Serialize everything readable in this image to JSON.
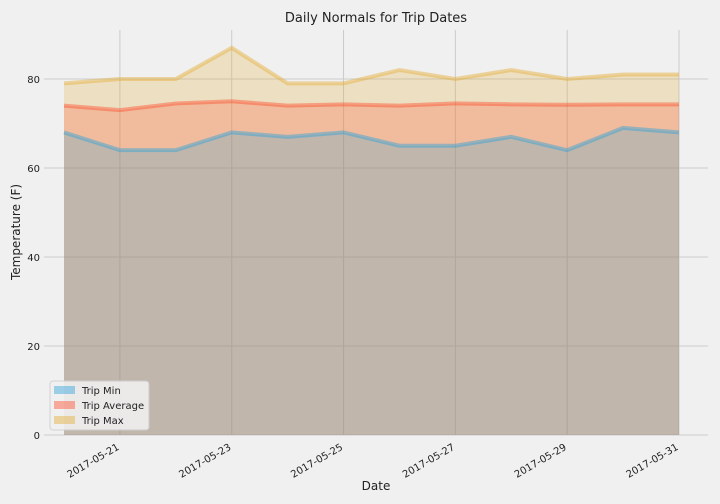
{
  "chart_data": {
    "type": "area",
    "title": "Daily Normals for Trip Dates",
    "xlabel": "Date",
    "ylabel": "Temperature (F)",
    "x": [
      "2017-05-20",
      "2017-05-21",
      "2017-05-22",
      "2017-05-23",
      "2017-05-24",
      "2017-05-25",
      "2017-05-26",
      "2017-05-27",
      "2017-05-28",
      "2017-05-29",
      "2017-05-30",
      "2017-05-31"
    ],
    "x_tick_labels": [
      "2017-05-21",
      "2017-05-23",
      "2017-05-25",
      "2017-05-27",
      "2017-05-29",
      "2017-05-31"
    ],
    "y_ticks": [
      0,
      20,
      40,
      60,
      80
    ],
    "ylim": [
      0,
      91
    ],
    "grid": true,
    "stacked": false,
    "legend_position": "lower-left",
    "series": [
      {
        "name": "Trip Min",
        "color": "#30a2da",
        "values": [
          68,
          64,
          64,
          68,
          67,
          68,
          65,
          65,
          67,
          64,
          69,
          68
        ]
      },
      {
        "name": "Trip Average",
        "color": "#fc4f30",
        "values": [
          74,
          73,
          74.5,
          75,
          74,
          74.3,
          74,
          74.5,
          74.3,
          74.2,
          74.3,
          74.3
        ]
      },
      {
        "name": "Trip Max",
        "color": "#e5ae38",
        "values": [
          79,
          80,
          80,
          87,
          79,
          79,
          82,
          80,
          82,
          80,
          81,
          81
        ]
      }
    ]
  }
}
